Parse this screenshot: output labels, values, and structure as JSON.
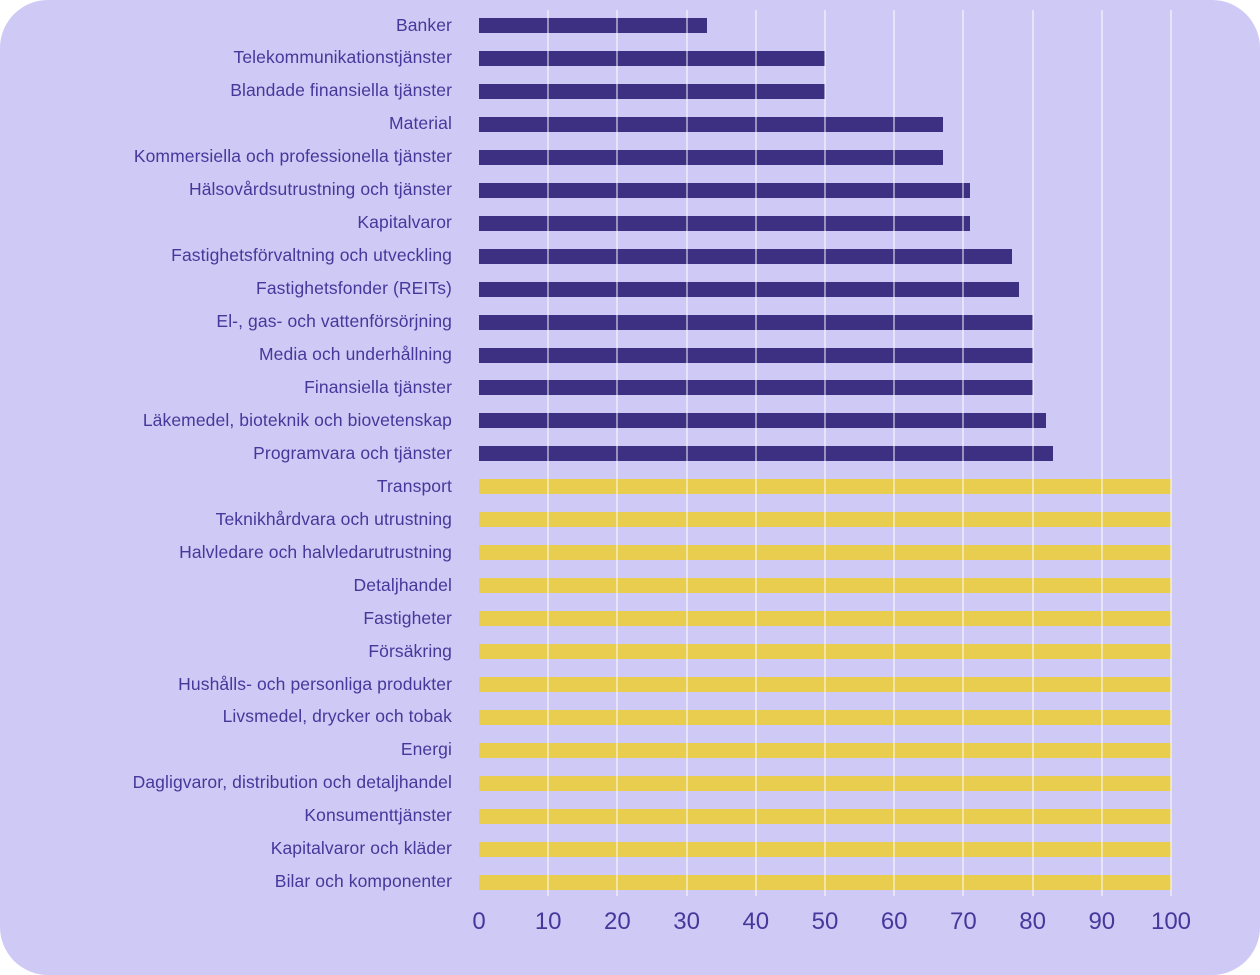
{
  "chart_data": {
    "type": "bar",
    "orientation": "horizontal",
    "title": "",
    "xlabel": "",
    "ylabel": "",
    "xlim": [
      0,
      100
    ],
    "x_ticks": [
      0,
      10,
      20,
      30,
      40,
      50,
      60,
      70,
      80,
      90,
      100
    ],
    "grid": "vertical",
    "legend": "none",
    "categories": [
      "Banker",
      "Telekommunikationstjänster",
      "Blandade finansiella tjänster",
      "Material",
      "Kommersiella och professionella tjänster",
      "Hälsovårdsutrustning och tjänster",
      "Kapitalvaror",
      "Fastighetsförvaltning och utveckling",
      "Fastighetsfonder (REITs)",
      "El-, gas- och vattenförsörjning",
      "Media och underhållning",
      "Finansiella tjänster",
      "Läkemedel, bioteknik och biovetenskap",
      "Programvara och tjänster",
      "Transport",
      "Teknikhårdvara och utrustning",
      "Halvledare och halvledarutrustning",
      "Detaljhandel",
      "Fastigheter",
      "Försäkring",
      "Hushålls- och personliga produkter",
      "Livsmedel, drycker och tobak",
      "Energi",
      "Dagligvaror, distribution och detaljhandel",
      "Konsumenttjänster",
      "Kapitalvaror och kläder",
      "Bilar och komponenter"
    ],
    "values": [
      33,
      50,
      50,
      67,
      67,
      71,
      71,
      77,
      78,
      80,
      80,
      80,
      82,
      83,
      100,
      100,
      100,
      100,
      100,
      100,
      100,
      100,
      100,
      100,
      100,
      100,
      100
    ],
    "bar_groups": [
      "dark",
      "dark",
      "dark",
      "dark",
      "dark",
      "dark",
      "dark",
      "dark",
      "dark",
      "dark",
      "dark",
      "dark",
      "dark",
      "dark",
      "yellow",
      "yellow",
      "yellow",
      "yellow",
      "yellow",
      "yellow",
      "yellow",
      "yellow",
      "yellow",
      "yellow",
      "yellow",
      "yellow",
      "yellow"
    ]
  },
  "colors": {
    "background": "#cfc9f5",
    "bar_dark": "#3d2f82",
    "bar_yellow": "#e8cd4f",
    "label_text": "#46389b",
    "axis_text": "#46389b",
    "gridline": "rgba(255,255,255,0.48)"
  }
}
